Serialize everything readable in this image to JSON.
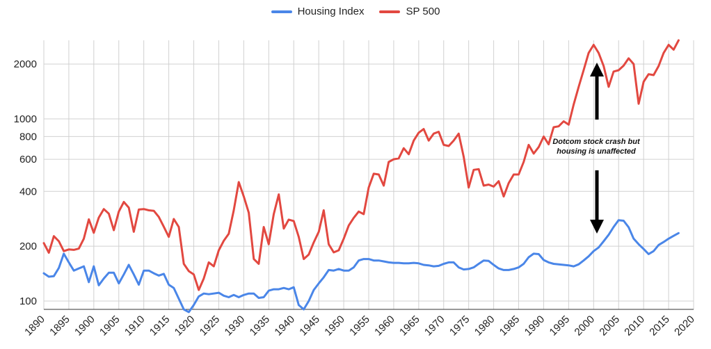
{
  "chart_data": {
    "type": "line",
    "yscale": "log",
    "ylim": [
      90,
      2700
    ],
    "xlim": [
      1890,
      2020
    ],
    "grid": true,
    "legend_position": "top-center",
    "yticks": [
      100,
      200,
      400,
      600,
      800,
      1000,
      2000
    ],
    "xticks": [
      1890,
      1895,
      1900,
      1905,
      1910,
      1915,
      1920,
      1925,
      1930,
      1935,
      1940,
      1945,
      1950,
      1955,
      1960,
      1965,
      1970,
      1975,
      1980,
      1985,
      1990,
      1995,
      2000,
      2005,
      2010,
      2015,
      2020
    ],
    "series": [
      {
        "name": "Housing Index",
        "color": "#4a86e8",
        "x": [
          1890,
          1891,
          1892,
          1893,
          1894,
          1895,
          1896,
          1897,
          1898,
          1899,
          1900,
          1901,
          1902,
          1903,
          1904,
          1905,
          1906,
          1907,
          1908,
          1909,
          1910,
          1911,
          1912,
          1913,
          1914,
          1915,
          1916,
          1917,
          1918,
          1919,
          1920,
          1921,
          1922,
          1923,
          1924,
          1925,
          1926,
          1927,
          1928,
          1929,
          1930,
          1931,
          1932,
          1933,
          1934,
          1935,
          1936,
          1937,
          1938,
          1939,
          1940,
          1941,
          1942,
          1943,
          1944,
          1945,
          1946,
          1947,
          1948,
          1949,
          1950,
          1951,
          1952,
          1953,
          1954,
          1955,
          1956,
          1957,
          1958,
          1959,
          1960,
          1961,
          1962,
          1963,
          1964,
          1965,
          1966,
          1967,
          1968,
          1969,
          1970,
          1971,
          1972,
          1973,
          1974,
          1975,
          1976,
          1977,
          1978,
          1979,
          1980,
          1981,
          1982,
          1983,
          1984,
          1985,
          1986,
          1987,
          1988,
          1989,
          1990,
          1991,
          1992,
          1993,
          1994,
          1995,
          1996,
          1997,
          1998,
          1999,
          2000,
          2001,
          2002,
          2003,
          2004,
          2005,
          2006,
          2007,
          2008,
          2009,
          2010,
          2011,
          2012,
          2013,
          2014,
          2015,
          2016,
          2017
        ],
        "values": [
          142,
          136,
          137,
          152,
          182,
          163,
          147,
          151,
          155,
          127,
          155,
          122,
          133,
          143,
          143,
          125,
          140,
          158,
          140,
          123,
          147,
          147,
          142,
          138,
          141,
          123,
          118,
          103,
          90,
          87,
          95,
          106,
          110,
          109,
          110,
          111,
          107,
          105,
          108,
          105,
          108,
          110,
          110,
          104,
          105,
          114,
          116,
          116,
          118,
          116,
          119,
          95,
          90,
          100,
          115,
          125,
          135,
          148,
          147,
          150,
          147,
          147,
          153,
          167,
          170,
          170,
          167,
          167,
          165,
          163,
          162,
          162,
          161,
          161,
          162,
          161,
          158,
          157,
          155,
          156,
          160,
          163,
          163,
          153,
          149,
          150,
          153,
          160,
          167,
          166,
          158,
          151,
          148,
          148,
          150,
          153,
          160,
          174,
          182,
          181,
          168,
          163,
          160,
          159,
          158,
          157,
          155,
          159,
          167,
          176,
          188,
          197,
          213,
          231,
          255,
          278,
          276,
          254,
          220,
          205,
          193,
          181,
          188,
          203,
          211,
          220,
          228,
          236
        ]
      },
      {
        "name": "SP 500",
        "color": "#e24840",
        "x": [
          1890,
          1891,
          1892,
          1893,
          1894,
          1895,
          1896,
          1897,
          1898,
          1899,
          1900,
          1901,
          1902,
          1903,
          1904,
          1905,
          1906,
          1907,
          1908,
          1909,
          1910,
          1911,
          1912,
          1913,
          1914,
          1915,
          1916,
          1917,
          1918,
          1919,
          1920,
          1921,
          1922,
          1923,
          1924,
          1925,
          1926,
          1927,
          1928,
          1929,
          1930,
          1931,
          1932,
          1933,
          1934,
          1935,
          1936,
          1937,
          1938,
          1939,
          1940,
          1941,
          1942,
          1943,
          1944,
          1945,
          1946,
          1947,
          1948,
          1949,
          1950,
          1951,
          1952,
          1953,
          1954,
          1955,
          1956,
          1957,
          1958,
          1959,
          1960,
          1961,
          1962,
          1963,
          1964,
          1965,
          1966,
          1967,
          1968,
          1969,
          1970,
          1971,
          1972,
          1973,
          1974,
          1975,
          1976,
          1977,
          1978,
          1979,
          1980,
          1981,
          1982,
          1983,
          1984,
          1985,
          1986,
          1987,
          1988,
          1989,
          1990,
          1991,
          1992,
          1993,
          1994,
          1995,
          1996,
          1997,
          1998,
          1999,
          2000,
          2001,
          2002,
          2003,
          2004,
          2005,
          2006,
          2007,
          2008,
          2009,
          2010,
          2011,
          2012,
          2013,
          2014,
          2015,
          2016,
          2017
        ],
        "values": [
          208,
          184,
          227,
          213,
          188,
          192,
          191,
          194,
          220,
          281,
          237,
          287,
          320,
          302,
          245,
          310,
          350,
          326,
          240,
          318,
          320,
          315,
          313,
          290,
          256,
          225,
          282,
          255,
          160,
          146,
          140,
          115,
          133,
          163,
          155,
          190,
          214,
          234,
          315,
          450,
          375,
          305,
          170,
          160,
          255,
          205,
          300,
          385,
          250,
          280,
          275,
          225,
          170,
          180,
          210,
          240,
          315,
          205,
          185,
          190,
          220,
          260,
          286,
          310,
          300,
          420,
          500,
          495,
          430,
          580,
          600,
          607,
          690,
          640,
          760,
          840,
          880,
          760,
          830,
          850,
          720,
          710,
          760,
          830,
          620,
          420,
          525,
          530,
          430,
          436,
          425,
          455,
          375,
          444,
          495,
          495,
          580,
          720,
          645,
          700,
          800,
          725,
          900,
          910,
          970,
          930,
          1200,
          1500,
          1850,
          2300,
          2550,
          2300,
          1950,
          1500,
          1820,
          1850,
          1960,
          2150,
          2000,
          1210,
          1600,
          1760,
          1740,
          1950,
          2300,
          2550,
          2400,
          2700
        ]
      }
    ],
    "annotations": [
      {
        "text_lines": [
          "Dotcom stock crash but",
          "housing is unaffected"
        ]
      }
    ]
  }
}
